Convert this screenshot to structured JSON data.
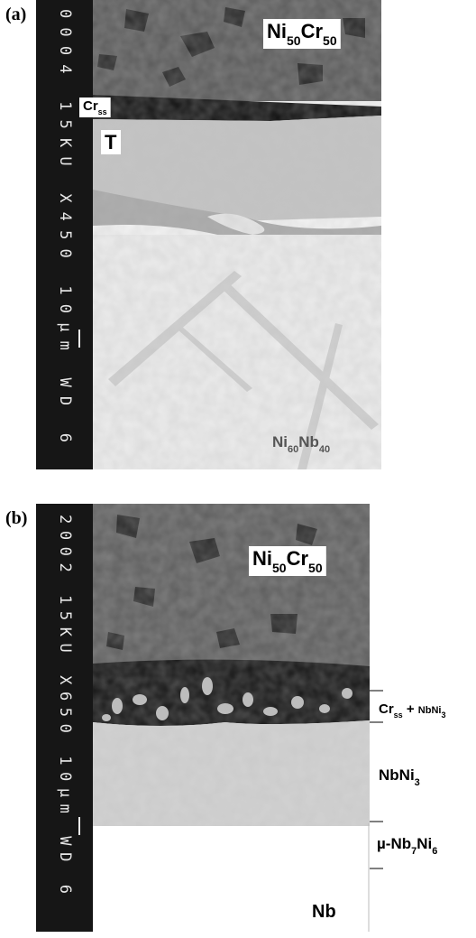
{
  "panels": [
    {
      "label": "(a)",
      "info": "0004 15KU X450 10µm WD 6",
      "annotations": [
        {
          "parts": [
            {
              "text": "Ni"
            },
            {
              "text": "50",
              "sub": true
            },
            {
              "text": "Cr"
            },
            {
              "text": "50",
              "sub": true
            }
          ]
        },
        {
          "parts": [
            {
              "text": "Cr"
            },
            {
              "text": "ss",
              "sub": true
            }
          ]
        },
        {
          "parts": [
            {
              "text": "T"
            }
          ]
        },
        {
          "parts": [
            {
              "text": "Ni"
            },
            {
              "text": "60",
              "sub": true
            },
            {
              "text": "Nb"
            },
            {
              "text": "40",
              "sub": true
            }
          ]
        }
      ]
    },
    {
      "label": "(b)",
      "info": "2002 15KU X650 10µm WD 6",
      "annotations": [
        {
          "parts": [
            {
              "text": "Ni"
            },
            {
              "text": "50",
              "sub": true
            },
            {
              "text": "Cr"
            },
            {
              "text": "50",
              "sub": true
            }
          ]
        },
        {
          "parts": [
            {
              "text": "Cr"
            },
            {
              "text": "ss",
              "sub": true
            },
            {
              "text": " + "
            },
            {
              "text": "NbNi",
              "small": true
            },
            {
              "text": "3",
              "sub": true
            }
          ]
        },
        {
          "parts": [
            {
              "text": "NbNi"
            },
            {
              "text": "3",
              "sub": true
            }
          ]
        },
        {
          "parts": [
            {
              "text": "µ-Nb"
            },
            {
              "text": "7",
              "sub": true
            },
            {
              "text": "Ni"
            },
            {
              "text": "6",
              "sub": true
            }
          ]
        },
        {
          "parts": [
            {
              "text": "Nb"
            }
          ]
        }
      ]
    }
  ]
}
